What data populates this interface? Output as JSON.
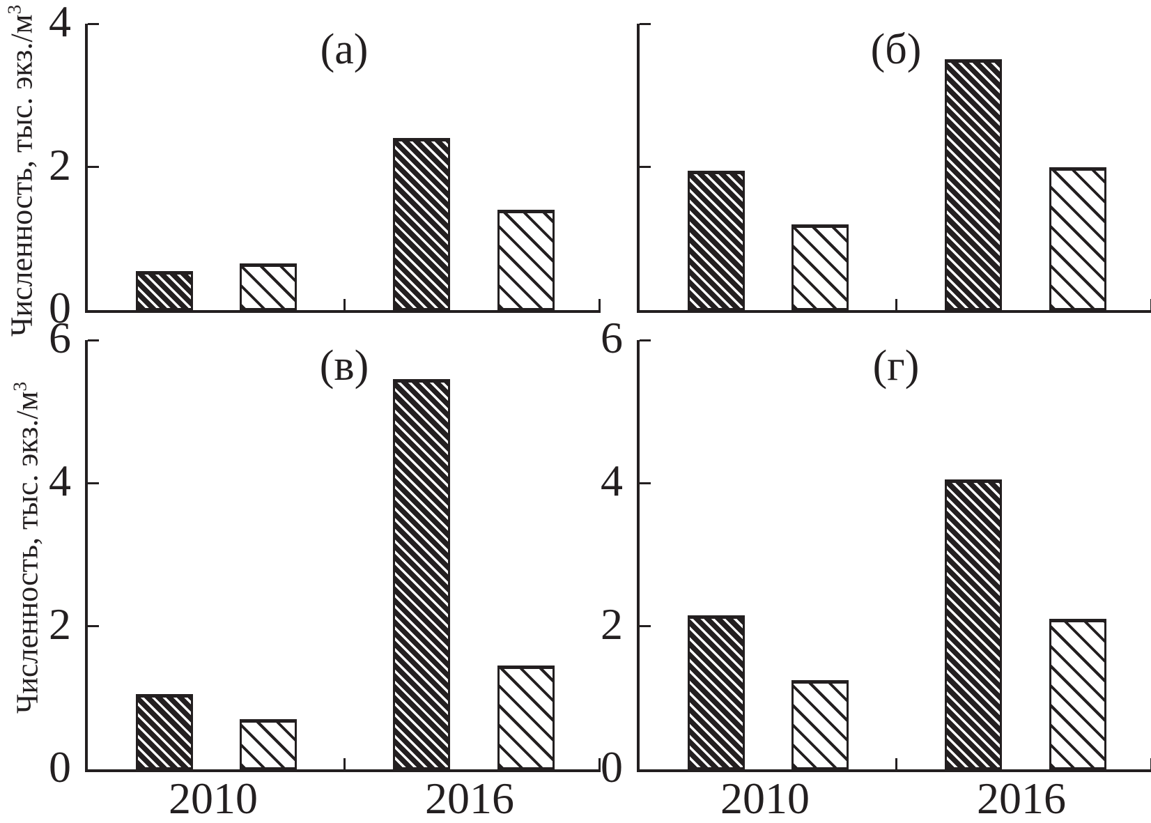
{
  "figure": {
    "background": "#ffffff",
    "ink_color": "#231f20",
    "ylabel_text": "Численность, тыс. экз./м",
    "ylabel_superscript": "3"
  },
  "chart_data": [
    {
      "type": "bar",
      "panel_label": "(а)",
      "grid_position": "top-left",
      "ylim": [
        0,
        4
      ],
      "yticks": [
        0,
        2,
        4
      ],
      "show_ytick_labels": true,
      "show_year_labels": false,
      "grid": false,
      "legend": "none",
      "categories": [
        "2010",
        "2016"
      ],
      "series": [
        {
          "name": "dense-hatch",
          "hatch": "dense",
          "values": [
            0.55,
            2.4
          ]
        },
        {
          "name": "light-hatch",
          "hatch": "light",
          "values": [
            0.65,
            1.4
          ]
        }
      ]
    },
    {
      "type": "bar",
      "panel_label": "(б)",
      "grid_position": "top-right",
      "ylim": [
        0,
        4
      ],
      "yticks": [
        0,
        2,
        4
      ],
      "show_ytick_labels": false,
      "show_year_labels": false,
      "grid": false,
      "legend": "none",
      "categories": [
        "2010",
        "2016"
      ],
      "series": [
        {
          "name": "dense-hatch",
          "hatch": "dense",
          "values": [
            1.95,
            3.5
          ]
        },
        {
          "name": "light-hatch",
          "hatch": "light",
          "values": [
            1.2,
            2.0
          ]
        }
      ]
    },
    {
      "type": "bar",
      "panel_label": "(в)",
      "grid_position": "bottom-left",
      "ylim": [
        0,
        6
      ],
      "yticks": [
        0,
        2,
        4,
        6
      ],
      "show_ytick_labels": true,
      "show_year_labels": true,
      "grid": false,
      "legend": "none",
      "categories": [
        "2010",
        "2016"
      ],
      "series": [
        {
          "name": "dense-hatch",
          "hatch": "dense",
          "values": [
            1.05,
            5.45
          ]
        },
        {
          "name": "light-hatch",
          "hatch": "light",
          "values": [
            0.7,
            1.45
          ]
        }
      ]
    },
    {
      "type": "bar",
      "panel_label": "(г)",
      "grid_position": "bottom-right",
      "ylim": [
        0,
        6
      ],
      "yticks": [
        0,
        2,
        4,
        6
      ],
      "show_ytick_labels": true,
      "show_year_labels": true,
      "grid": false,
      "legend": "none",
      "categories": [
        "2010",
        "2016"
      ],
      "series": [
        {
          "name": "dense-hatch",
          "hatch": "dense",
          "values": [
            2.15,
            4.05
          ]
        },
        {
          "name": "light-hatch",
          "hatch": "light",
          "values": [
            1.25,
            2.1
          ]
        }
      ]
    }
  ]
}
